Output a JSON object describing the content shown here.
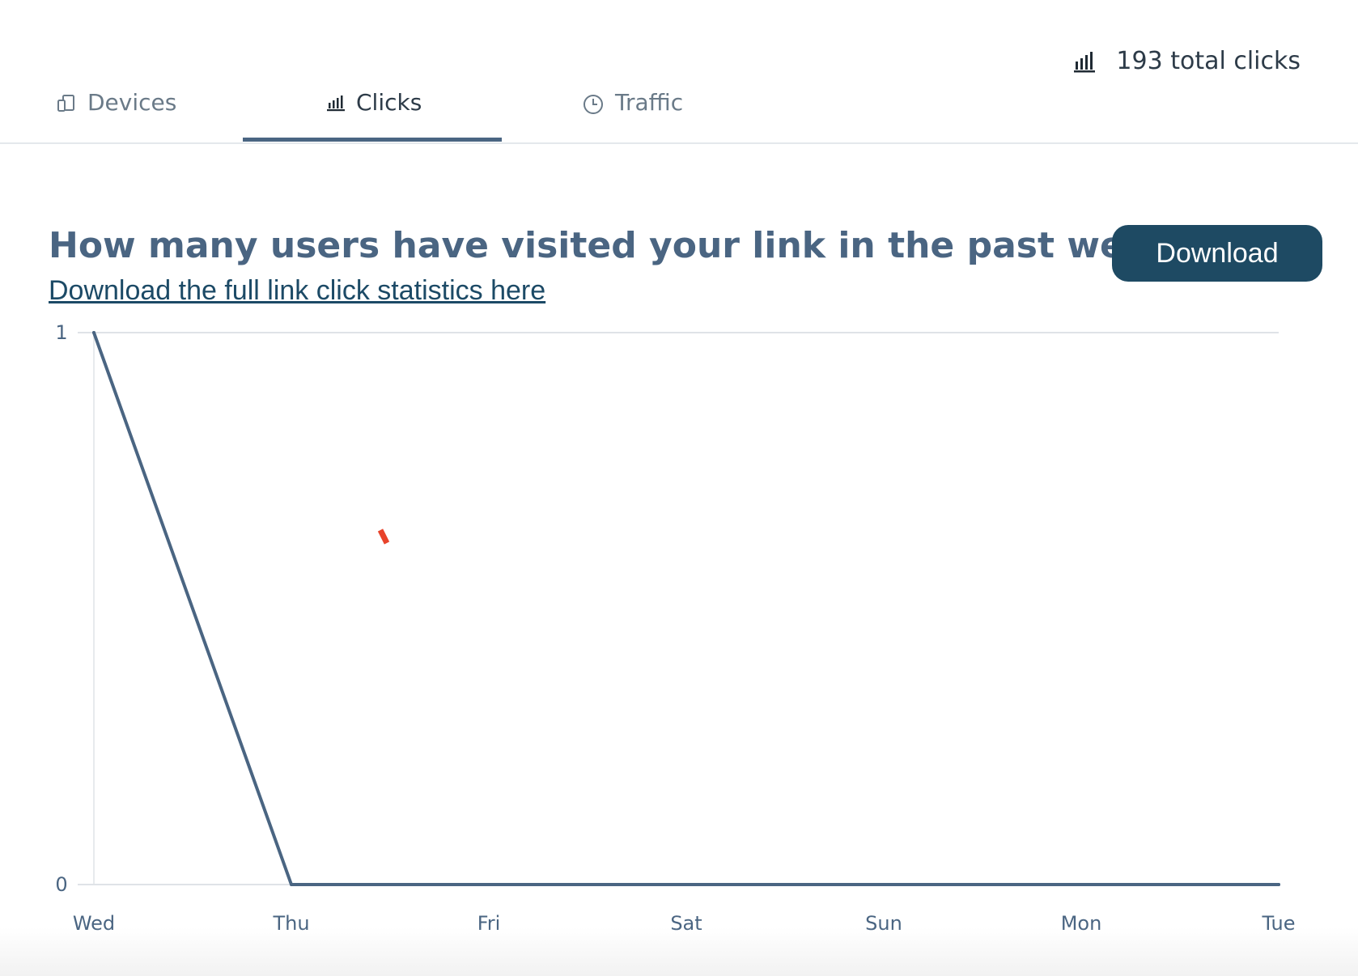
{
  "summary": {
    "total_clicks": "193 total clicks",
    "icon": "bar-chart-icon"
  },
  "tabs": [
    {
      "label": "Devices",
      "icon": "devices-icon",
      "active": false
    },
    {
      "label": "Clicks",
      "icon": "bar-chart-icon",
      "active": true
    },
    {
      "label": "Traffic",
      "icon": "clock-icon",
      "active": false
    }
  ],
  "main": {
    "heading": "How many users have visited your link in the past week?",
    "download_link": "Download the full link click statistics here",
    "download_button": "Download"
  },
  "colors": {
    "accent": "#4a6582",
    "button": "#1e4a63",
    "link": "#1c4a66",
    "marker": "#e8432b"
  },
  "chart_data": {
    "type": "line",
    "categories": [
      "Wed",
      "Thu",
      "Fri",
      "Sat",
      "Sun",
      "Mon",
      "Tue"
    ],
    "series": [
      {
        "values": [
          1,
          0,
          0,
          0,
          0,
          0,
          0
        ]
      }
    ],
    "ylim": [
      0,
      1
    ],
    "yticks": [
      "0",
      "1"
    ],
    "title": "",
    "xlabel": "",
    "ylabel": "",
    "grid": true
  }
}
